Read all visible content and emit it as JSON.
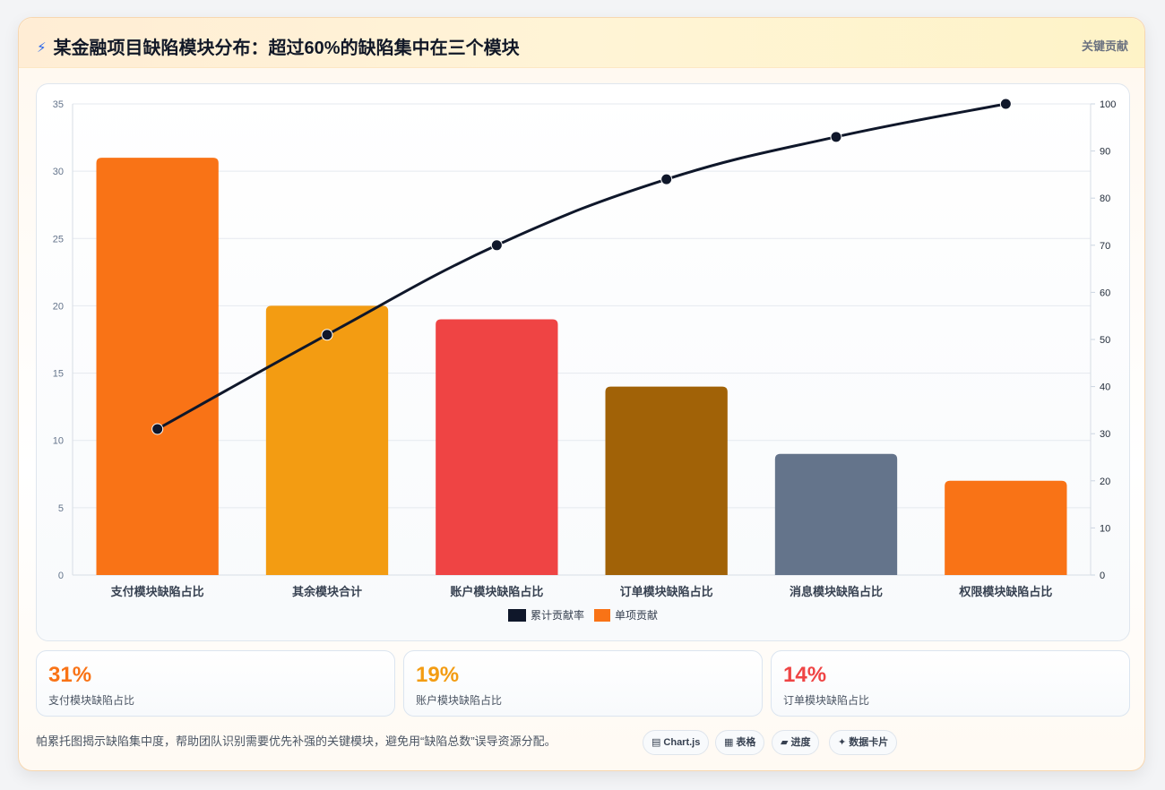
{
  "header": {
    "title": "某金融项目缺陷模块分布：超过60%的缺陷集中在三个模块",
    "tag": "关键贡献"
  },
  "chart_data": {
    "type": "bar",
    "categories": [
      "支付模块缺陷占比",
      "其余模块合计",
      "账户模块缺陷占比",
      "订单模块缺陷占比",
      "消息模块缺陷占比",
      "权限模块缺陷占比"
    ],
    "series": [
      {
        "name": "单项贡献",
        "type": "bar",
        "values": [
          31,
          20,
          19,
          14,
          9,
          7
        ],
        "colors": [
          "#f97316",
          "#f39c12",
          "#ef4444",
          "#a16207",
          "#64748b",
          "#f97316"
        ],
        "axis": "left"
      },
      {
        "name": "累计贡献率",
        "type": "line",
        "values": [
          31,
          51,
          70,
          84,
          93,
          100
        ],
        "color": "#0f172a",
        "axis": "right"
      }
    ],
    "y_left": {
      "min": 0,
      "max": 35,
      "ticks": [
        "0",
        "5",
        "10",
        "15",
        "20",
        "25",
        "30",
        "35"
      ]
    },
    "y_right": {
      "min": 0,
      "max": 100,
      "ticks": [
        "0",
        "10",
        "20",
        "30",
        "40",
        "50",
        "60",
        "70",
        "80",
        "90",
        "100"
      ]
    },
    "legend": {
      "position": "bottom"
    },
    "grid": true
  },
  "stats": [
    {
      "value": "31%",
      "label": "支付模块缺陷占比",
      "color": "#f97316"
    },
    {
      "value": "19%",
      "label": "账户模块缺陷占比",
      "color": "#f39c12"
    },
    {
      "value": "14%",
      "label": "订单模块缺陷占比",
      "color": "#ef4444"
    }
  ],
  "footer": {
    "note": "帕累托图揭示缺陷集中度，帮助团队识别需要优先补强的关键模块，避免用“缺陷总数”误导资源分配。",
    "chips": [
      {
        "icon": "▤",
        "label": "Chart.js"
      },
      {
        "icon": "▦",
        "label": "表格"
      },
      {
        "icon": "▰",
        "label": "进度"
      },
      {
        "icon": "✦",
        "label": "数据卡片"
      }
    ]
  }
}
